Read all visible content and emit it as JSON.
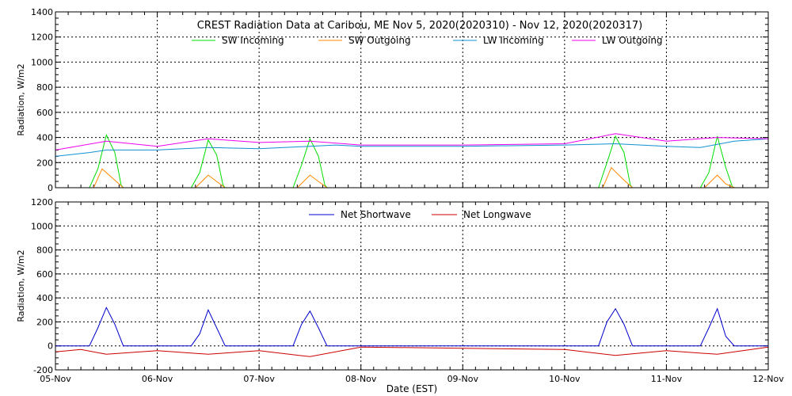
{
  "title": "CREST Radiation Data at Caribou, ME   Nov  5, 2020(2020310) - Nov 12, 2020(2020317)",
  "xlabel": "Date (EST)",
  "x_tick_labels": [
    "05-Nov",
    "06-Nov",
    "07-Nov",
    "08-Nov",
    "09-Nov",
    "10-Nov",
    "11-Nov",
    "12-Nov"
  ],
  "chart_data": [
    {
      "type": "line",
      "title": "CREST Radiation Data at Caribou, ME   Nov  5, 2020(2020310) - Nov 12, 2020(2020317)",
      "xlabel": "",
      "ylabel": "Radiation, W/m^2",
      "ylim": [
        0,
        1400
      ],
      "y_ticks": [
        0,
        200,
        400,
        600,
        800,
        1000,
        1200,
        1400
      ],
      "grid": true,
      "legend_position": "top",
      "series": [
        {
          "name": "SW Incoming",
          "color": "#00dd00",
          "x": [
            "2020-11-05 00:00",
            "2020-11-05 08:00",
            "2020-11-05 10:00",
            "2020-11-05 12:00",
            "2020-11-05 14:00",
            "2020-11-05 15:30",
            "2020-11-05 16:00",
            "2020-11-06 08:00",
            "2020-11-06 10:00",
            "2020-11-06 12:00",
            "2020-11-06 14:00",
            "2020-11-06 15:30",
            "2020-11-06 16:00",
            "2020-11-07 08:00",
            "2020-11-07 10:00",
            "2020-11-07 12:00",
            "2020-11-07 14:00",
            "2020-11-07 15:30",
            "2020-11-07 16:00",
            "2020-11-10 08:00",
            "2020-11-10 10:00",
            "2020-11-10 12:00",
            "2020-11-10 14:00",
            "2020-11-10 15:30",
            "2020-11-10 16:00",
            "2020-11-11 08:00",
            "2020-11-11 10:00",
            "2020-11-11 12:00",
            "2020-11-11 14:00",
            "2020-11-11 15:30",
            "2020-11-11 16:00",
            "2020-11-12 00:00"
          ],
          "y": [
            0,
            0,
            150,
            420,
            280,
            20,
            0,
            0,
            120,
            380,
            260,
            20,
            0,
            0,
            180,
            390,
            250,
            20,
            0,
            0,
            200,
            410,
            280,
            20,
            0,
            0,
            120,
            410,
            160,
            10,
            0,
            0
          ]
        },
        {
          "name": "SW Outgoing",
          "color": "#ff8800",
          "x": [
            "2020-11-05 00:00",
            "2020-11-05 09:00",
            "2020-11-05 11:00",
            "2020-11-05 14:00",
            "2020-11-05 16:00",
            "2020-11-06 09:00",
            "2020-11-06 12:00",
            "2020-11-06 14:00",
            "2020-11-06 16:00",
            "2020-11-07 09:00",
            "2020-11-07 12:00",
            "2020-11-07 14:00",
            "2020-11-07 16:00",
            "2020-11-10 09:00",
            "2020-11-10 11:00",
            "2020-11-10 14:00",
            "2020-11-10 16:00",
            "2020-11-11 09:00",
            "2020-11-11 12:00",
            "2020-11-11 14:00",
            "2020-11-11 16:00",
            "2020-11-12 00:00"
          ],
          "y": [
            0,
            0,
            150,
            60,
            0,
            0,
            100,
            50,
            0,
            0,
            100,
            50,
            0,
            0,
            160,
            60,
            0,
            0,
            100,
            30,
            0,
            0
          ]
        },
        {
          "name": "LW Incoming",
          "color": "#1090d0",
          "x": [
            "2020-11-05 00:00",
            "2020-11-05 08:00",
            "2020-11-05 12:00",
            "2020-11-06 00:00",
            "2020-11-06 12:00",
            "2020-11-07 00:00",
            "2020-11-07 12:00",
            "2020-11-07 18:00",
            "2020-11-08 00:00",
            "2020-11-09 00:00",
            "2020-11-10 00:00",
            "2020-11-10 12:00",
            "2020-11-11 00:00",
            "2020-11-11 08:00",
            "2020-11-11 16:00",
            "2020-11-12 00:00"
          ],
          "y": [
            250,
            280,
            300,
            300,
            320,
            310,
            330,
            340,
            330,
            330,
            340,
            350,
            330,
            320,
            370,
            390
          ]
        },
        {
          "name": "LW Outgoing",
          "color": "#ee00ee",
          "x": [
            "2020-11-05 00:00",
            "2020-11-05 12:00",
            "2020-11-06 00:00",
            "2020-11-06 12:00",
            "2020-11-07 00:00",
            "2020-11-07 12:00",
            "2020-11-08 00:00",
            "2020-11-09 00:00",
            "2020-11-10 00:00",
            "2020-11-10 12:00",
            "2020-11-11 00:00",
            "2020-11-11 12:00",
            "2020-11-12 00:00"
          ],
          "y": [
            300,
            370,
            330,
            390,
            360,
            370,
            340,
            340,
            350,
            430,
            370,
            400,
            390
          ]
        }
      ]
    },
    {
      "type": "line",
      "title": "",
      "xlabel": "Date (EST)",
      "ylabel": "Radiation, W/m^2",
      "ylim": [
        -200,
        1200
      ],
      "y_ticks": [
        -200,
        0,
        200,
        400,
        600,
        800,
        1000,
        1200
      ],
      "grid": true,
      "legend_position": "top",
      "series": [
        {
          "name": "Net Shortwave",
          "color": "#0000cc",
          "x": [
            "2020-11-05 00:00",
            "2020-11-05 08:00",
            "2020-11-05 10:00",
            "2020-11-05 12:00",
            "2020-11-05 14:00",
            "2020-11-05 16:00",
            "2020-11-06 08:00",
            "2020-11-06 10:00",
            "2020-11-06 12:00",
            "2020-11-06 14:00",
            "2020-11-06 16:00",
            "2020-11-07 08:00",
            "2020-11-07 10:00",
            "2020-11-07 12:00",
            "2020-11-07 14:00",
            "2020-11-07 16:00",
            "2020-11-10 08:00",
            "2020-11-10 10:00",
            "2020-11-10 12:00",
            "2020-11-10 14:00",
            "2020-11-10 16:00",
            "2020-11-11 08:00",
            "2020-11-11 10:00",
            "2020-11-11 12:00",
            "2020-11-11 14:00",
            "2020-11-11 16:00",
            "2020-11-12 00:00"
          ],
          "y": [
            0,
            0,
            150,
            320,
            180,
            0,
            0,
            100,
            300,
            150,
            0,
            0,
            180,
            290,
            150,
            0,
            0,
            200,
            310,
            180,
            0,
            0,
            150,
            310,
            80,
            0,
            0
          ]
        },
        {
          "name": "Net Longwave",
          "color": "#cc0000",
          "x": [
            "2020-11-05 00:00",
            "2020-11-05 06:00",
            "2020-11-05 12:00",
            "2020-11-06 00:00",
            "2020-11-06 12:00",
            "2020-11-07 00:00",
            "2020-11-07 12:00",
            "2020-11-08 00:00",
            "2020-11-09 00:00",
            "2020-11-10 00:00",
            "2020-11-10 12:00",
            "2020-11-11 00:00",
            "2020-11-11 12:00",
            "2020-11-12 00:00"
          ],
          "y": [
            -50,
            -30,
            -70,
            -40,
            -70,
            -40,
            -90,
            -10,
            -20,
            -30,
            -80,
            -40,
            -70,
            -10
          ]
        }
      ]
    }
  ]
}
